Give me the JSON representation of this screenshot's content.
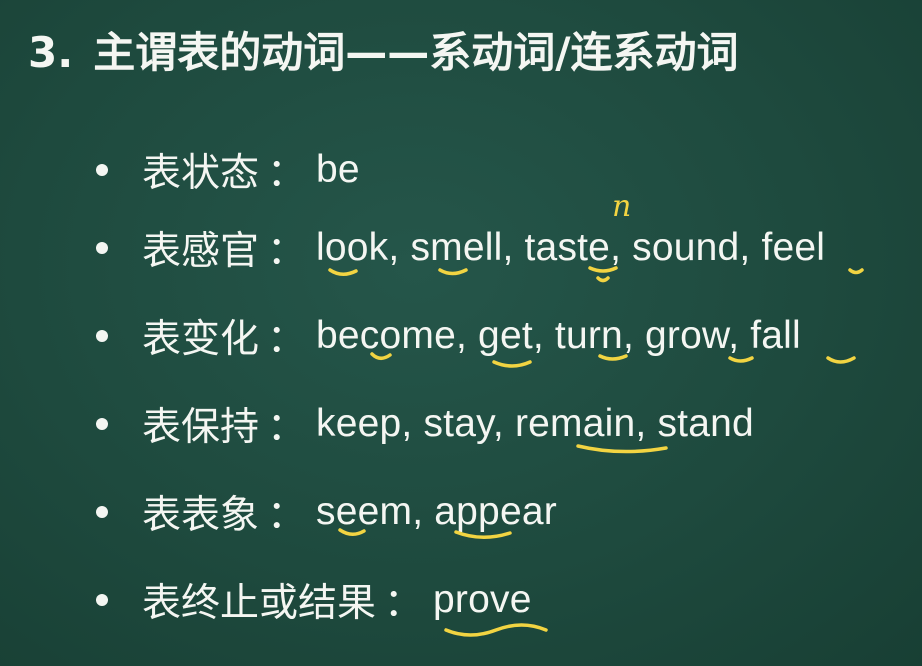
{
  "heading": {
    "number": "3.",
    "text": "主谓表的动词——系动词/连系动词"
  },
  "items": [
    {
      "label": "表状态",
      "colon": "：",
      "verbs": "be"
    },
    {
      "label": "表感官",
      "colon": "：",
      "verbs": "look, smell, taste, sound, feel"
    },
    {
      "label": "表变化",
      "colon": "：",
      "verbs": "become, get, turn, grow, fall"
    },
    {
      "label": "表保持",
      "colon": "：",
      "verbs": "keep, stay, remain, stand"
    },
    {
      "label": "表表象",
      "colon": "：",
      "verbs": "seem, appear"
    },
    {
      "label": "表终止或结果",
      "colon": "：",
      "verbs": "prove"
    }
  ],
  "annotations": {
    "taste_note": "n",
    "ink_color": "#f2d442"
  },
  "colors": {
    "board": "#1f4a3d",
    "text": "#f4f6f2"
  }
}
